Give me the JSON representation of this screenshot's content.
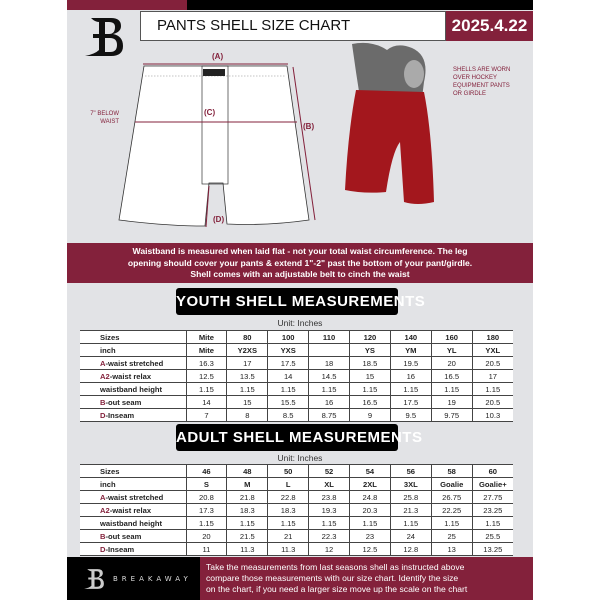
{
  "header": {
    "title": "PANTS SHELL SIZE CHART",
    "date": "2025.4.22"
  },
  "diagram": {
    "labels": {
      "a": "(A)",
      "b": "(B)",
      "c": "(C)",
      "d": "(D)"
    },
    "c_note": [
      "7\" BELOW",
      "WAIST"
    ],
    "side_note": [
      "SHELLS ARE WORN",
      "OVER HOCKEY",
      "EQUIPMENT PANTS",
      "OR GIRDLE"
    ]
  },
  "info_band": [
    "Waistband is measured when laid flat - not your total waist circumference. The leg",
    "opening should cover your pants & extend 1\"-2\" past the bottom of your pant/girdle.",
    "Shell comes with an adjustable belt to cinch the waist"
  ],
  "youth": {
    "title": "YOUTH SHELL MEASUREMENTS",
    "unit": "Unit: Inches",
    "rows": [
      {
        "prefix": "",
        "label": "Sizes",
        "values": [
          "Mite",
          "80",
          "100",
          "110",
          "120",
          "140",
          "160",
          "180"
        ]
      },
      {
        "prefix": "",
        "label": "inch",
        "values": [
          "Mite",
          "Y2XS",
          "YXS",
          "",
          "YS",
          "YM",
          "YL",
          "YXL"
        ]
      },
      {
        "prefix": "A",
        "label": "-waist stretched",
        "values": [
          "16.3",
          "17",
          "17.5",
          "18",
          "18.5",
          "19.5",
          "20",
          "20.5"
        ]
      },
      {
        "prefix": "A2",
        "label": "-waist relax",
        "values": [
          "12.5",
          "13.5",
          "14",
          "14.5",
          "15",
          "16",
          "16.5",
          "17"
        ]
      },
      {
        "prefix": "",
        "label": "waistband height",
        "values": [
          "1.15",
          "1.15",
          "1.15",
          "1.15",
          "1.15",
          "1.15",
          "1.15",
          "1.15"
        ]
      },
      {
        "prefix": "B",
        "label": "-out seam",
        "values": [
          "14",
          "15",
          "15.5",
          "16",
          "16.5",
          "17.5",
          "19",
          "20.5"
        ]
      },
      {
        "prefix": "D",
        "label": "-Inseam",
        "values": [
          "7",
          "8",
          "8.5",
          "8.75",
          "9",
          "9.5",
          "9.75",
          "10.3"
        ]
      }
    ]
  },
  "adult": {
    "title": "ADULT SHELL MEASUREMENTS",
    "unit": "Unit: Inches",
    "rows": [
      {
        "prefix": "",
        "label": "Sizes",
        "values": [
          "46",
          "48",
          "50",
          "52",
          "54",
          "56",
          "58",
          "60"
        ]
      },
      {
        "prefix": "",
        "label": "inch",
        "values": [
          "S",
          "M",
          "L",
          "XL",
          "2XL",
          "3XL",
          "Goalie",
          "Goalie+"
        ]
      },
      {
        "prefix": "A",
        "label": "-waist stretched",
        "values": [
          "20.8",
          "21.8",
          "22.8",
          "23.8",
          "24.8",
          "25.8",
          "26.75",
          "27.75"
        ]
      },
      {
        "prefix": "A2",
        "label": "-waist relax",
        "values": [
          "17.3",
          "18.3",
          "18.3",
          "19.3",
          "20.3",
          "21.3",
          "22.25",
          "23.25"
        ]
      },
      {
        "prefix": "",
        "label": "waistband height",
        "values": [
          "1.15",
          "1.15",
          "1.15",
          "1.15",
          "1.15",
          "1.15",
          "1.15",
          "1.15"
        ]
      },
      {
        "prefix": "B",
        "label": "-out seam",
        "values": [
          "20",
          "21.5",
          "21",
          "22.3",
          "23",
          "24",
          "25",
          "25.5"
        ]
      },
      {
        "prefix": "D",
        "label": "-Inseam",
        "values": [
          "11",
          "11.3",
          "11.3",
          "12",
          "12.5",
          "12.8",
          "13",
          "13.25"
        ]
      }
    ]
  },
  "footer": {
    "brand": "BREAKAWAY",
    "text": [
      "Take the measurements from last seasons shell as instructed above",
      "compare those measurements  with our size chart. Identify the size",
      "on the chart, if you need a larger size move up the scale on the chart"
    ]
  },
  "colors": {
    "accent": "#83213b",
    "dark": "#000000",
    "background": "#e2e3e6"
  }
}
